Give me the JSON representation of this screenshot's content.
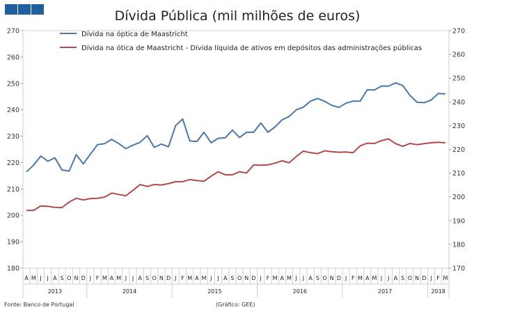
{
  "chart_data": {
    "type": "line",
    "title": "Dívida Pública (mil milhões de euros)",
    "ylim": [
      180,
      270
    ],
    "ylim_right": [
      170,
      270
    ],
    "y_ticks": [
      180,
      190,
      200,
      210,
      220,
      230,
      240,
      250,
      260,
      270
    ],
    "y_ticks_right": [
      170,
      180,
      190,
      200,
      210,
      220,
      230,
      240,
      250,
      260,
      270
    ],
    "months": [
      "A",
      "M",
      "J",
      "J",
      "A",
      "S",
      "O",
      "N",
      "D",
      "J",
      "F",
      "M",
      "A",
      "M",
      "J",
      "J",
      "A",
      "S",
      "O",
      "N",
      "D",
      "J",
      "F",
      "M",
      "A",
      "M",
      "J",
      "J",
      "A",
      "S",
      "O",
      "N",
      "D",
      "J",
      "F",
      "M",
      "A",
      "M",
      "J",
      "J",
      "A",
      "S",
      "O",
      "N",
      "D",
      "J",
      "F",
      "M",
      "A",
      "M",
      "J",
      "J",
      "A",
      "S",
      "O",
      "N",
      "D",
      "J",
      "F",
      "M"
    ],
    "years": [
      {
        "label": "2013",
        "start": 0,
        "count": 9
      },
      {
        "label": "2014",
        "start": 9,
        "count": 12
      },
      {
        "label": "2015",
        "start": 21,
        "count": 12
      },
      {
        "label": "2016",
        "start": 33,
        "count": 12
      },
      {
        "label": "2017",
        "start": 45,
        "count": 12
      },
      {
        "label": "2018",
        "start": 57,
        "count": 3
      }
    ],
    "series": [
      {
        "name": "Dívida na óptica de Maastricht",
        "color": "#4a76a8",
        "axis": "left",
        "values": [
          216.5,
          219.0,
          222.5,
          220.5,
          221.8,
          217.2,
          216.8,
          223.0,
          219.5,
          223.2,
          226.8,
          227.2,
          228.8,
          227.2,
          225.3,
          226.6,
          227.7,
          230.2,
          225.8,
          227.0,
          226.0,
          234.0,
          236.5,
          228.2,
          228.0,
          231.5,
          227.5,
          229.2,
          229.4,
          232.3,
          229.5,
          231.5,
          231.5,
          235.0,
          231.5,
          233.5,
          236.2,
          237.5,
          240.0,
          241.0,
          243.3,
          244.3,
          243.2,
          241.7,
          240.9,
          242.5,
          243.3,
          243.3,
          247.6,
          247.5,
          249.0,
          249.0,
          250.2,
          249.2,
          245.5,
          242.9,
          242.7,
          243.7,
          246.2,
          246.0
        ]
      },
      {
        "name": "Dívida na ótica de Maastricht - Dívida líquida de ativos em depósitos das administrações públicas",
        "color": "#b34a4a",
        "axis": "right",
        "values": [
          194.3,
          194.3,
          196.2,
          196.0,
          195.6,
          195.5,
          197.8,
          199.4,
          198.7,
          199.3,
          199.4,
          199.9,
          201.6,
          201.0,
          200.5,
          202.8,
          205.2,
          204.4,
          205.2,
          205.0,
          205.6,
          206.4,
          206.4,
          207.3,
          206.9,
          206.6,
          208.7,
          210.6,
          209.3,
          209.3,
          210.6,
          210.1,
          213.5,
          213.3,
          213.5,
          214.2,
          215.2,
          214.4,
          217.0,
          219.3,
          218.6,
          218.2,
          219.4,
          219.0,
          218.8,
          218.9,
          218.6,
          221.5,
          222.6,
          222.5,
          223.7,
          224.4,
          222.4,
          221.3,
          222.5,
          222.0,
          222.4,
          222.8,
          223.0,
          222.8
        ]
      }
    ]
  },
  "footer": {
    "source": "Fonte: Banco de Portugal",
    "credit": "(Gráfico: GEE)"
  }
}
